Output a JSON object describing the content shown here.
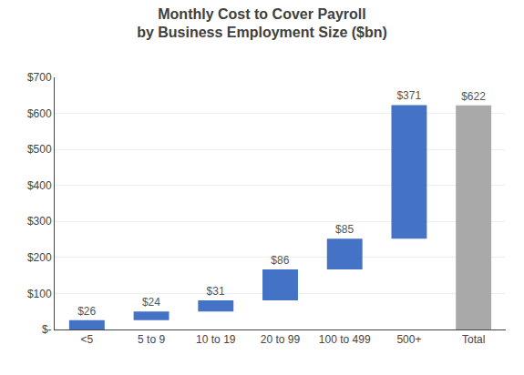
{
  "chart_data": {
    "type": "waterfall",
    "title": "Monthly Cost to Cover Payroll",
    "subtitle": "by Business Employment Size ($bn)",
    "categories": [
      "<5",
      "5 to 9",
      "10 to 19",
      "20 to 99",
      "100 to 499",
      "500+",
      "Total"
    ],
    "values": [
      26,
      24,
      31,
      86,
      85,
      371,
      622
    ],
    "value_labels": [
      "$26",
      "$24",
      "$31",
      "$86",
      "$85",
      "$371",
      "$622"
    ],
    "data_labels": true,
    "colors": [
      "#4472C4",
      "#4472C4",
      "#4472C4",
      "#4472C4",
      "#4472C4",
      "#4472C4",
      "#A9A9A9"
    ],
    "ylim": [
      0,
      700
    ],
    "yticks": [
      {
        "value": 0,
        "label": "$-"
      },
      {
        "value": 100,
        "label": "$100"
      },
      {
        "value": 200,
        "label": "$200"
      },
      {
        "value": 300,
        "label": "$300"
      },
      {
        "value": 400,
        "label": "$400"
      },
      {
        "value": 500,
        "label": "$500"
      },
      {
        "value": 600,
        "label": "$600"
      },
      {
        "value": 700,
        "label": "$700"
      }
    ],
    "grid": true
  }
}
